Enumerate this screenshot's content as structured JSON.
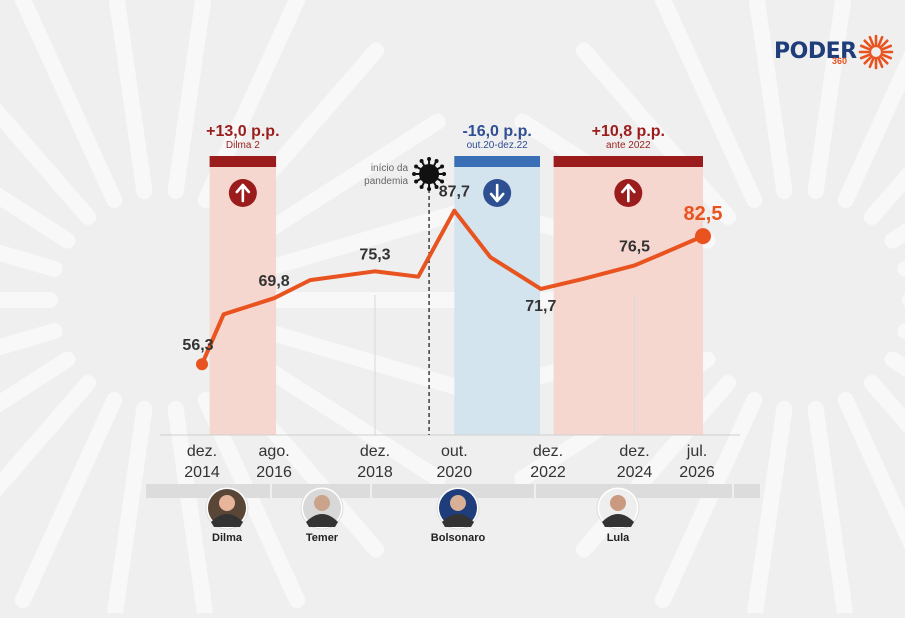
{
  "brand": {
    "name": "PODER",
    "number": "360"
  },
  "pandemic_label": [
    "início da",
    "pandemia"
  ],
  "periods": [
    {
      "change": "+13,0 p.p.",
      "note": "Dilma 2",
      "direction": "up",
      "color": "#9b1c1c"
    },
    {
      "change": "-16,0 p.p.",
      "note": "out.20-dez.22",
      "direction": "down",
      "color": "#2f4f93"
    },
    {
      "change": "+10,8 p.p.",
      "note": "ante 2022",
      "direction": "up",
      "color": "#9b1c1c"
    }
  ],
  "leaders": [
    {
      "name": "Dilma"
    },
    {
      "name": "Temer"
    },
    {
      "name": "Bolsonaro"
    },
    {
      "name": "Lula"
    }
  ],
  "chart_data": {
    "type": "line",
    "x": [
      "2014-12",
      "2015-06",
      "2016-08",
      "2017-06",
      "2018-12",
      "2019-12",
      "2020-10",
      "2021-08",
      "2022-10",
      "2023-10",
      "2024-12",
      "2025-08",
      "2026-07"
    ],
    "series": [
      {
        "values": [
          56.3,
          66.5,
          69.8,
          73.5,
          75.3,
          74.2,
          87.7,
          78.2,
          71.7,
          73.8,
          76.5,
          79.0,
          82.5
        ]
      }
    ],
    "data_labels": [
      {
        "x": "2014-12",
        "label": "56,3"
      },
      {
        "x": "2016-08",
        "label": "69,8"
      },
      {
        "x": "2018-12",
        "label": "75,3"
      },
      {
        "x": "2020-10",
        "label": "87,7"
      },
      {
        "x": "2022-10",
        "label": "71,7"
      },
      {
        "x": "2024-12",
        "label": "76,5"
      },
      {
        "x": "2026-07",
        "label": "82,5"
      }
    ],
    "x_ticks": [
      {
        "x": "2014-12",
        "line1": "dez.",
        "line2": "2014"
      },
      {
        "x": "2016-08",
        "line1": "ago.",
        "line2": "2016"
      },
      {
        "x": "2018-12",
        "line1": "dez.",
        "line2": "2018"
      },
      {
        "x": "2020-10",
        "line1": "out.",
        "line2": "2020"
      },
      {
        "x": "2022-12",
        "line1": "dez.",
        "line2": "2022"
      },
      {
        "x": "2024-12",
        "line1": "dez.",
        "line2": "2024"
      },
      {
        "x": "2026-07",
        "line1": "jul.",
        "line2": "2026"
      }
    ],
    "highlighted_periods": [
      {
        "from": "2015-01",
        "to": "2016-08"
      },
      {
        "from": "2020-10",
        "to": "2022-12"
      },
      {
        "from": "2023-01",
        "to": "2026-07"
      }
    ],
    "pandemic_marker": "2020-03",
    "ylim": [
      50,
      95
    ],
    "line_color": "#e8531f"
  }
}
